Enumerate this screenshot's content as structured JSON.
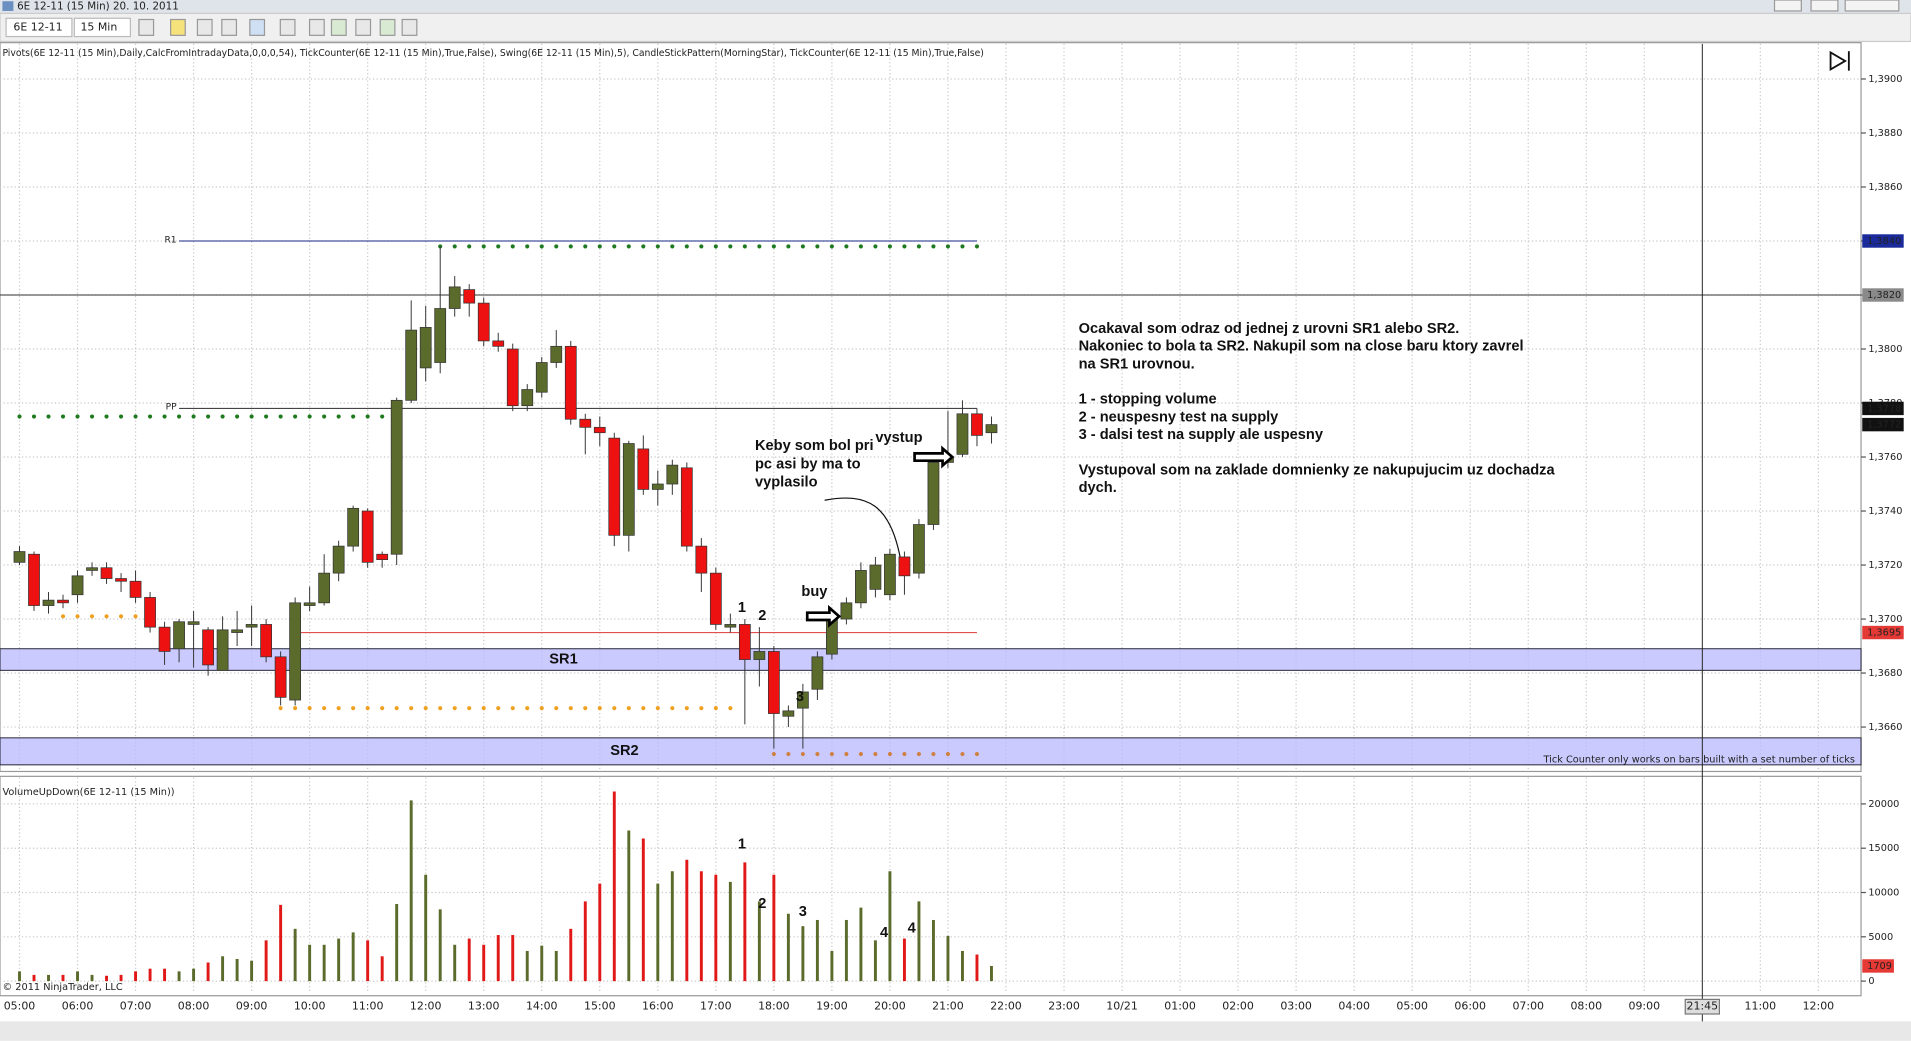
{
  "window": {
    "title": "6E 12-11 (15 Min)  20. 10. 2011",
    "instrument": "6E 12-11",
    "interval": "15 Min"
  },
  "indicators_line": "Pivots(6E 12-11 (15 Min),Daily,CalcFromIntradayData,0,0,0,54), TickCounter(6E 12-11 (15 Min),True,False), Swing(6E 12-11 (15 Min),5), CandleStickPattern(MorningStar), TickCounter(6E 12-11 (15 Min),True,False)",
  "copyright": "© 2011 NinjaTrader, LLC",
  "warning": "Tick Counter only works on bars built with a set number of ticks",
  "crosshair_time": "21:45",
  "annotations": {
    "bar_numbers": [
      "1",
      "2",
      "3"
    ],
    "buy": "buy",
    "exit": "vystup",
    "comment": [
      "Keby som bol pri",
      "pc asi by ma to",
      "vyplasilo"
    ],
    "note": [
      [
        "Ocakaval som odraz od jednej z urovni SR1 alebo SR2.",
        "Nakoniec to bola ta SR2. Nakupil som na close baru ktory zavrel",
        "na SR1 urovnou."
      ],
      [
        "1 - stopping volume",
        "2 - neuspesny test na supply",
        "3 - dalsi test na supply ale uspesny"
      ],
      [
        "Vystupoval som na zaklade domnienky ze nakupujucim uz dochadza",
        "dych."
      ]
    ],
    "volume_numbers": [
      "1",
      "2",
      "3",
      "4",
      "4"
    ]
  },
  "chart_data": [
    {
      "type": "candlestick",
      "x": [
        "05:00",
        "05:15",
        "05:30",
        "05:45",
        "06:00",
        "06:15",
        "06:30",
        "06:45",
        "07:00",
        "07:15",
        "07:30",
        "07:45",
        "08:00",
        "08:15",
        "08:30",
        "08:45",
        "09:00",
        "09:15",
        "09:30",
        "09:45",
        "10:00",
        "10:15",
        "10:30",
        "10:45",
        "11:00",
        "11:15",
        "11:30",
        "11:45",
        "12:00",
        "12:15",
        "12:30",
        "12:45",
        "13:00",
        "13:15",
        "13:30",
        "13:45",
        "14:00",
        "14:15",
        "14:30",
        "14:45",
        "15:00",
        "15:15",
        "15:30",
        "15:45",
        "16:00",
        "16:15",
        "16:30",
        "16:45",
        "17:00",
        "17:15",
        "17:30",
        "17:45",
        "18:00",
        "18:15",
        "18:30",
        "18:45",
        "19:00",
        "19:15",
        "19:30",
        "19:45",
        "20:00",
        "20:15",
        "20:30",
        "20:45",
        "21:00",
        "21:15",
        "21:30",
        "21:45"
      ],
      "open": [
        1.3721,
        1.3724,
        1.3705,
        1.3707,
        1.3709,
        1.3718,
        1.3719,
        1.3715,
        1.3714,
        1.3708,
        1.3697,
        1.3689,
        1.3698,
        1.3696,
        1.3681,
        1.3695,
        1.3697,
        1.3698,
        1.3686,
        1.367,
        1.3705,
        1.3706,
        1.3717,
        1.3727,
        1.374,
        1.3724,
        1.3724,
        1.3781,
        1.3793,
        1.3795,
        1.3815,
        1.3822,
        1.3817,
        1.3803,
        1.38,
        1.3779,
        1.3784,
        1.3795,
        1.3801,
        1.3774,
        1.3771,
        1.3767,
        1.3731,
        1.3763,
        1.3748,
        1.375,
        1.3756,
        1.3727,
        1.3717,
        1.3697,
        1.3698,
        1.3685,
        1.3688,
        1.3664,
        1.3667,
        1.3674,
        1.3687,
        1.37,
        1.3706,
        1.3711,
        1.3709,
        1.3723,
        1.3717,
        1.3735,
        1.3758,
        1.3761,
        1.3776,
        1.3769
      ],
      "high": [
        1.3727,
        1.3725,
        1.371,
        1.3709,
        1.3718,
        1.3721,
        1.3721,
        1.3717,
        1.3718,
        1.371,
        1.3699,
        1.37,
        1.3703,
        1.3697,
        1.3701,
        1.3703,
        1.3705,
        1.37,
        1.3688,
        1.3708,
        1.3712,
        1.3724,
        1.3729,
        1.3742,
        1.3741,
        1.3725,
        1.3782,
        1.3818,
        1.3816,
        1.3838,
        1.3827,
        1.3824,
        1.3819,
        1.3806,
        1.3802,
        1.3787,
        1.3797,
        1.3807,
        1.3803,
        1.3776,
        1.3775,
        1.3769,
        1.3766,
        1.3768,
        1.3755,
        1.3759,
        1.3758,
        1.373,
        1.3719,
        1.3702,
        1.37,
        1.3697,
        1.369,
        1.3668,
        1.3676,
        1.3688,
        1.3702,
        1.3708,
        1.3721,
        1.3723,
        1.3726,
        1.3725,
        1.3737,
        1.376,
        1.3777,
        1.3781,
        1.3778,
        1.3775
      ],
      "low": [
        1.372,
        1.3703,
        1.3702,
        1.3704,
        1.3706,
        1.3716,
        1.3713,
        1.371,
        1.3706,
        1.3695,
        1.3683,
        1.3684,
        1.3682,
        1.3679,
        1.3681,
        1.369,
        1.369,
        1.3684,
        1.3668,
        1.3668,
        1.3703,
        1.3705,
        1.3714,
        1.3725,
        1.3719,
        1.3719,
        1.372,
        1.378,
        1.3788,
        1.3791,
        1.3812,
        1.3812,
        1.3801,
        1.3799,
        1.3777,
        1.3777,
        1.3782,
        1.3793,
        1.3772,
        1.3761,
        1.3764,
        1.3727,
        1.3725,
        1.3746,
        1.3742,
        1.3746,
        1.3725,
        1.371,
        1.3696,
        1.3695,
        1.3661,
        1.3675,
        1.3652,
        1.366,
        1.3652,
        1.367,
        1.3685,
        1.3698,
        1.3704,
        1.3708,
        1.3707,
        1.3709,
        1.3715,
        1.3733,
        1.3756,
        1.376,
        1.3764,
        1.3765
      ],
      "close": [
        1.3725,
        1.3705,
        1.3707,
        1.3706,
        1.3716,
        1.3719,
        1.3715,
        1.3714,
        1.3708,
        1.3697,
        1.3688,
        1.3699,
        1.3699,
        1.3683,
        1.3696,
        1.3696,
        1.3698,
        1.3686,
        1.3671,
        1.3706,
        1.3706,
        1.3717,
        1.3727,
        1.3741,
        1.3721,
        1.3722,
        1.3781,
        1.3807,
        1.3808,
        1.3815,
        1.3823,
        1.3817,
        1.3803,
        1.3801,
        1.3779,
        1.3785,
        1.3795,
        1.3801,
        1.3774,
        1.3771,
        1.3769,
        1.3731,
        1.3765,
        1.3748,
        1.375,
        1.3757,
        1.3727,
        1.3717,
        1.3698,
        1.3698,
        1.3685,
        1.3688,
        1.3665,
        1.3666,
        1.3673,
        1.3686,
        1.37,
        1.3706,
        1.3718,
        1.372,
        1.3724,
        1.3716,
        1.3735,
        1.3758,
        1.376,
        1.3776,
        1.3768,
        1.3772
      ],
      "up_color": "#5b6b2c",
      "down_color": "#ee1111",
      "ylim": [
        1.3644,
        1.3913
      ],
      "yticks": [
        {
          "value": 1.366,
          "label": "1,3660"
        },
        {
          "value": 1.368,
          "label": "1,3680"
        },
        {
          "value": 1.37,
          "label": "1,3700"
        },
        {
          "value": 1.372,
          "label": "1,3720"
        },
        {
          "value": 1.374,
          "label": "1,3740"
        },
        {
          "value": 1.376,
          "label": "1,3760"
        },
        {
          "value": 1.378,
          "label": "1,3780"
        },
        {
          "value": 1.38,
          "label": "1,3800"
        },
        {
          "value": 1.382,
          "label": "1,3820"
        },
        {
          "value": 1.384,
          "label": "1,3840"
        },
        {
          "value": 1.386,
          "label": "1,3860"
        },
        {
          "value": 1.388,
          "label": "1,3880"
        },
        {
          "value": 1.39,
          "label": "1,3900"
        }
      ],
      "x_labels": [
        "05:00",
        "06:00",
        "07:00",
        "08:00",
        "09:00",
        "10:00",
        "11:00",
        "12:00",
        "13:00",
        "14:00",
        "15:00",
        "16:00",
        "17:00",
        "18:00",
        "19:00",
        "20:00",
        "21:00",
        "22:00",
        "23:00",
        "10/21",
        "01:00",
        "02:00",
        "03:00",
        "04:00",
        "05:00",
        "06:00",
        "07:00",
        "08:00",
        "09:00",
        "11:00",
        "12:00"
      ],
      "grid": true,
      "levels": [
        {
          "name": "R1",
          "value": 1.384,
          "from": "07:45",
          "to": "21:30",
          "color": "#1a2a8a"
        },
        {
          "name": "PP",
          "value": 1.3778,
          "from": "07:45",
          "to": "21:30",
          "color": "#444444"
        }
      ],
      "lines": [
        {
          "value": 1.382,
          "color": "#333333"
        },
        {
          "value": 1.3695,
          "from": "09:45",
          "to": "21:30",
          "color": "#e05050"
        }
      ],
      "swing_lines": [
        {
          "value": 1.3838,
          "from": "12:15",
          "to": "21:30",
          "color": "#1f7a1f"
        },
        {
          "value": 1.3775,
          "from": "05:00",
          "to": "11:30",
          "color": "#1f7a1f"
        },
        {
          "value": 1.3701,
          "from": "05:45",
          "to": "07:00",
          "color": "#f0a020"
        },
        {
          "value": 1.3667,
          "from": "09:30",
          "to": "17:15",
          "color": "#f0a020"
        },
        {
          "value": 1.365,
          "from": "18:00",
          "to": "21:30",
          "color": "#d08040"
        }
      ],
      "zones": [
        {
          "name": "SR1",
          "low": 1.3681,
          "high": 1.3689
        },
        {
          "name": "SR2",
          "low": 1.3646,
          "high": 1.3656
        }
      ],
      "zone_color": "#b8b8ff",
      "price_labels": [
        {
          "value": 1.384,
          "label": "1,3840",
          "color": "#1a2a9a"
        },
        {
          "value": 1.382,
          "label": "1,3820",
          "color": "#8a8a8a"
        },
        {
          "value": 1.3778,
          "label": "1,3778",
          "color": "#111111"
        },
        {
          "value": 1.3772,
          "label": "1,3772",
          "color": "#111111"
        },
        {
          "value": 1.3695,
          "label": "1,3695",
          "color": "#e53935"
        }
      ]
    },
    {
      "type": "bar",
      "title": "VolumeUpDown(6E 12-11 (15 Min))",
      "values": [
        1100,
        700,
        700,
        700,
        1100,
        700,
        600,
        700,
        1100,
        1400,
        1400,
        1100,
        1400,
        2100,
        2800,
        2500,
        2300,
        4600,
        8600,
        5900,
        4100,
        4100,
        4800,
        5500,
        4600,
        2800,
        8700,
        20400,
        12000,
        8100,
        4100,
        4800,
        4100,
        5200,
        5200,
        3400,
        4000,
        3400,
        5900,
        9000,
        11000,
        21400,
        17000,
        16100,
        11000,
        12400,
        13700,
        12400,
        12000,
        11200,
        13400,
        9000,
        12000,
        7600,
        6200,
        6900,
        3400,
        6900,
        8300,
        4600,
        12400,
        4800,
        9000,
        6900,
        5100,
        3400,
        3000,
        1709
      ],
      "ylim": [
        0,
        22700
      ],
      "yticks": [
        0,
        5000,
        10000,
        15000,
        20000
      ],
      "up_color": "#5b6b2c",
      "down_color": "#e01818",
      "last_color": "#e53935"
    }
  ]
}
